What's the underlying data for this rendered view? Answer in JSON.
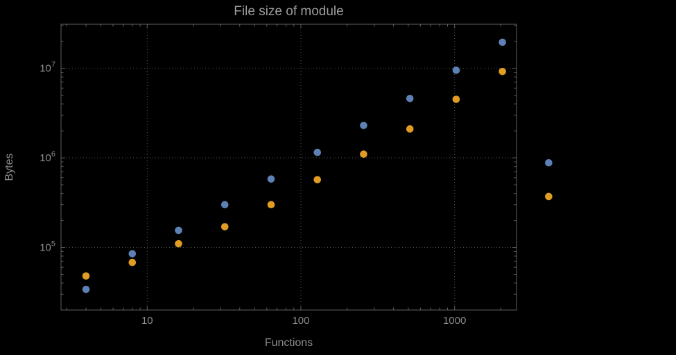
{
  "chart_data": {
    "type": "scatter",
    "title": "File size of module",
    "xlabel": "Functions",
    "ylabel": "Bytes",
    "x_scale": "log",
    "y_scale": "log",
    "xlim": [
      2.75,
      2530
    ],
    "ylim": [
      20000,
      31000000
    ],
    "x_major_ticks": [
      10,
      100,
      1000
    ],
    "x_tick_labels": [
      "10",
      "100",
      "1000"
    ],
    "y_major_ticks": [
      100000,
      1000000,
      10000000
    ],
    "y_tick_labels": [
      {
        "base": "10",
        "exp": "5"
      },
      {
        "base": "10",
        "exp": "6"
      },
      {
        "base": "10",
        "exp": "7"
      }
    ],
    "grid": {
      "show": true,
      "style": "dotted",
      "at_x": [
        10,
        100,
        1000
      ],
      "at_y": [
        100000,
        1000000,
        10000000
      ]
    },
    "legend": "none",
    "clip_points_to_frame": false,
    "x": [
      4,
      8,
      16,
      32,
      64,
      128,
      256,
      512,
      1024,
      2048,
      4096
    ],
    "series": [
      {
        "name": "series-blue",
        "color": "#5e81b5",
        "values": [
          34000,
          85000,
          155000,
          300000,
          580000,
          1150000,
          2300000,
          4600000,
          9500000,
          19500000,
          880000
        ]
      },
      {
        "name": "series-orange",
        "color": "#e19c24",
        "values": [
          48000,
          68000,
          110000,
          170000,
          300000,
          570000,
          1100000,
          2100000,
          4500000,
          9200000,
          370000
        ]
      }
    ]
  },
  "colors": {
    "background": "#000000",
    "frame": "#606060",
    "grid": "#585858",
    "tick_text": "#8d8d8d",
    "label_text": "#8d8d8d",
    "title_text": "#9d9d9d"
  }
}
